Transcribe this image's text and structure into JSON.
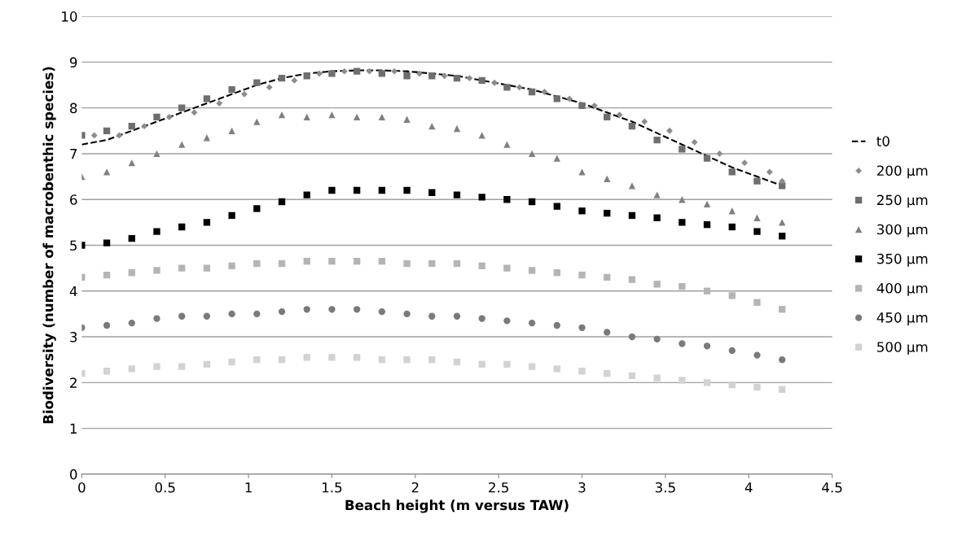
{
  "chart_data": {
    "type": "scatter",
    "xlabel": "Beach height (m versus TAW)",
    "ylabel": "Biodiversity (number of macrobenthic species)",
    "x": [
      0,
      0.15,
      0.3,
      0.45,
      0.6,
      0.75,
      0.9,
      1.05,
      1.2,
      1.35,
      1.5,
      1.65,
      1.8,
      1.95,
      2.1,
      2.25,
      2.4,
      2.55,
      2.7,
      2.85,
      3.0,
      3.15,
      3.3,
      3.45,
      3.6,
      3.75,
      3.9,
      4.05,
      4.2
    ],
    "xlim": [
      0,
      4.5
    ],
    "xticks": [
      0,
      0.5,
      1,
      1.5,
      2,
      2.5,
      3,
      3.5,
      4,
      4.5
    ],
    "ylim": [
      0,
      10
    ],
    "yticks": [
      0,
      1,
      2,
      3,
      4,
      5,
      6,
      7,
      8,
      9,
      10
    ],
    "grid": "y",
    "legend": "right",
    "series": [
      {
        "name": "t0",
        "type": "line",
        "line_style": "dashed",
        "marker": "none",
        "color": "#000000",
        "values": [
          7.2,
          7.3,
          7.5,
          7.7,
          7.9,
          8.1,
          8.3,
          8.5,
          8.65,
          8.75,
          8.8,
          8.82,
          8.82,
          8.8,
          8.75,
          8.7,
          8.6,
          8.5,
          8.4,
          8.25,
          8.1,
          7.9,
          7.7,
          7.45,
          7.2,
          6.95,
          6.7,
          6.5,
          6.3
        ]
      },
      {
        "name": "200 µm",
        "marker": "diamond",
        "color": "#8c8c8c",
        "x": [
          0.075,
          0.225,
          0.375,
          0.525,
          0.675,
          0.825,
          0.975,
          1.125,
          1.275,
          1.425,
          1.575,
          1.725,
          1.875,
          2.025,
          2.175,
          2.325,
          2.475,
          2.625,
          2.775,
          2.925,
          3.075,
          3.225,
          3.375,
          3.525,
          3.675,
          3.825,
          3.975,
          4.125,
          4.2
        ],
        "values": [
          7.4,
          7.4,
          7.6,
          7.8,
          7.9,
          8.1,
          8.3,
          8.45,
          8.6,
          8.75,
          8.8,
          8.8,
          8.8,
          8.75,
          8.7,
          8.65,
          8.55,
          8.45,
          8.35,
          8.2,
          8.05,
          7.85,
          7.7,
          7.5,
          7.25,
          7.0,
          6.8,
          6.6,
          6.4
        ]
      },
      {
        "name": "250 µm",
        "marker": "square",
        "color": "#6e6e6e",
        "values": [
          7.4,
          7.5,
          7.6,
          7.8,
          8.0,
          8.2,
          8.4,
          8.55,
          8.65,
          8.7,
          8.75,
          8.8,
          8.75,
          8.7,
          8.7,
          8.65,
          8.6,
          8.45,
          8.35,
          8.2,
          8.05,
          7.8,
          7.6,
          7.3,
          7.1,
          6.9,
          6.6,
          6.4,
          6.3
        ]
      },
      {
        "name": "300 µm",
        "marker": "triangle",
        "color": "#808080",
        "values": [
          6.5,
          6.6,
          6.8,
          7.0,
          7.2,
          7.35,
          7.5,
          7.7,
          7.85,
          7.8,
          7.85,
          7.8,
          7.8,
          7.75,
          7.6,
          7.55,
          7.4,
          7.2,
          7.0,
          6.9,
          6.6,
          6.45,
          6.3,
          6.1,
          6.0,
          5.9,
          5.75,
          5.6,
          5.5
        ]
      },
      {
        "name": "350 µm",
        "marker": "square",
        "color": "#000000",
        "values": [
          5.0,
          5.05,
          5.15,
          5.3,
          5.4,
          5.5,
          5.65,
          5.8,
          5.95,
          6.1,
          6.2,
          6.2,
          6.2,
          6.2,
          6.15,
          6.1,
          6.05,
          6.0,
          5.95,
          5.85,
          5.75,
          5.7,
          5.65,
          5.6,
          5.5,
          5.45,
          5.4,
          5.3,
          5.2
        ]
      },
      {
        "name": "400 µm",
        "marker": "square",
        "color": "#b4b4b4",
        "values": [
          4.3,
          4.35,
          4.4,
          4.45,
          4.5,
          4.5,
          4.55,
          4.6,
          4.6,
          4.65,
          4.65,
          4.65,
          4.65,
          4.6,
          4.6,
          4.6,
          4.55,
          4.5,
          4.45,
          4.4,
          4.35,
          4.3,
          4.25,
          4.15,
          4.1,
          4.0,
          3.9,
          3.75,
          3.6
        ]
      },
      {
        "name": "450 µm",
        "marker": "circle",
        "color": "#7a7a7a",
        "values": [
          3.2,
          3.25,
          3.3,
          3.4,
          3.45,
          3.45,
          3.5,
          3.5,
          3.55,
          3.6,
          3.6,
          3.6,
          3.55,
          3.5,
          3.45,
          3.45,
          3.4,
          3.35,
          3.3,
          3.25,
          3.2,
          3.1,
          3.0,
          2.95,
          2.85,
          2.8,
          2.7,
          2.6,
          2.5
        ]
      },
      {
        "name": "500 µm",
        "marker": "square",
        "color": "#d2d2d2",
        "values": [
          2.2,
          2.25,
          2.3,
          2.35,
          2.35,
          2.4,
          2.45,
          2.5,
          2.5,
          2.55,
          2.55,
          2.55,
          2.5,
          2.5,
          2.5,
          2.45,
          2.4,
          2.4,
          2.35,
          2.3,
          2.25,
          2.2,
          2.15,
          2.1,
          2.05,
          2.0,
          1.95,
          1.9,
          1.85
        ]
      }
    ]
  }
}
